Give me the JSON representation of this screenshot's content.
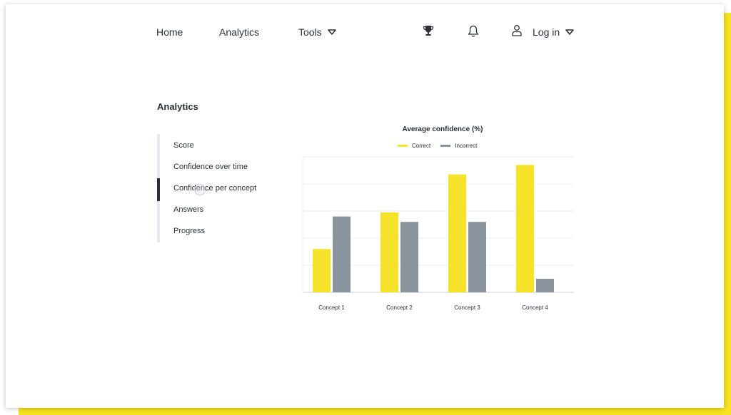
{
  "nav": {
    "home": "Home",
    "analytics": "Analytics",
    "tools": "Tools",
    "login": "Log in",
    "icons": [
      "trophy-icon",
      "bell-icon",
      "user-icon"
    ]
  },
  "sidebar": {
    "title": "Analytics",
    "items": [
      {
        "label": "Score"
      },
      {
        "label": "Confidence over time"
      },
      {
        "label": "Confidence per concept",
        "active": true
      },
      {
        "label": "Answers"
      },
      {
        "label": "Progress"
      }
    ]
  },
  "colors": {
    "correct": "#f7e22a",
    "incorrect": "#8a949e",
    "accent_shadow": "#f6e21f"
  },
  "chart_data": {
    "type": "bar",
    "title": "Average confidence (%)",
    "categories": [
      "Concept 1",
      "Concept 2",
      "Concept 3",
      "Concept 4"
    ],
    "series": [
      {
        "name": "Correct",
        "values": [
          32,
          59,
          87,
          94
        ]
      },
      {
        "name": "Incorrect",
        "values": [
          56,
          52,
          52,
          10
        ]
      }
    ],
    "ylim": [
      0,
      100
    ],
    "grid": true,
    "legend": "top"
  }
}
